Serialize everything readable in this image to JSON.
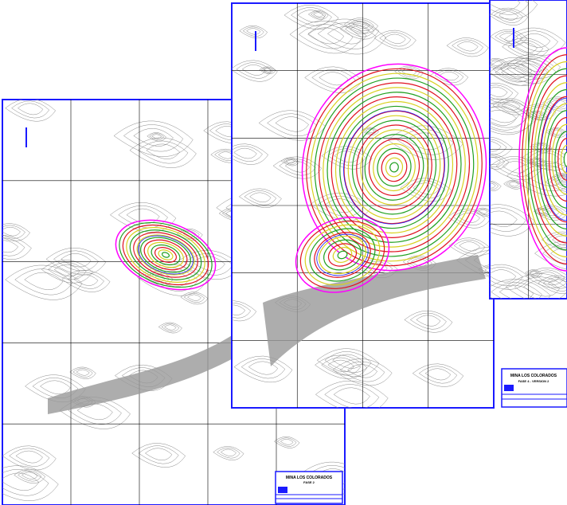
{
  "sheets": [
    {
      "title": "MINA LOS COLORADOS",
      "subtitle": "FASE 2"
    },
    {
      "title": "MINA LOS COLORADOS",
      "subtitle": "FASE 4 - VERSION 2"
    }
  ]
}
